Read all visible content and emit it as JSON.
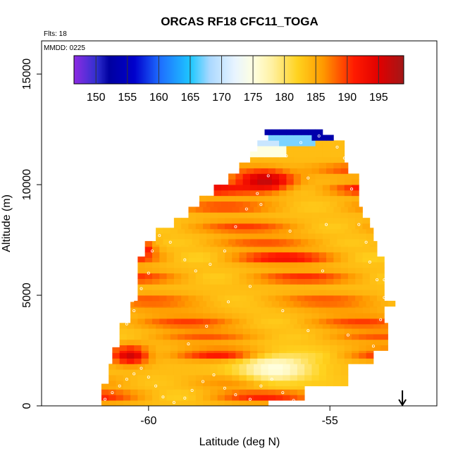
{
  "header": {
    "title": "ORCAS RF18 CFC11_TOGA",
    "flights_label": "Flts: 18",
    "date_label": "MMDD: 0225"
  },
  "chart_data": {
    "type": "heatmap",
    "title": "ORCAS RF18 CFC11_TOGA",
    "xlabel": "Latitude (deg N)",
    "ylabel": "Altitude (m)",
    "xlim": [
      -62.95,
      -52.05
    ],
    "ylim": [
      0,
      16500
    ],
    "x_ticks": [
      -60,
      -55
    ],
    "x_tick_labels": [
      "-60",
      "-55"
    ],
    "y_ticks": [
      0,
      5000,
      10000,
      15000
    ],
    "y_tick_labels": [
      "0",
      "5000",
      "10000",
      "15000"
    ],
    "grid": false,
    "colorbar": {
      "placement": "top, inside plot",
      "min": 146.5,
      "max": 199,
      "ticks": [
        150,
        155,
        160,
        165,
        170,
        175,
        180,
        185,
        190,
        195
      ],
      "tick_labels": [
        "150",
        "155",
        "160",
        "165",
        "170",
        "175",
        "180",
        "185",
        "190",
        "195"
      ],
      "stops": [
        [
          146.5,
          "#8a2be2"
        ],
        [
          150,
          "#3030d0"
        ],
        [
          152,
          "#0000a0"
        ],
        [
          156,
          "#0000cc"
        ],
        [
          160,
          "#1e6cff"
        ],
        [
          165,
          "#1ec8ff"
        ],
        [
          168,
          "#aad8ff"
        ],
        [
          172,
          "#e8f4ff"
        ],
        [
          175,
          "#ffffe0"
        ],
        [
          178,
          "#fff0a0"
        ],
        [
          182,
          "#ffd21e"
        ],
        [
          186,
          "#ff9a00"
        ],
        [
          188,
          "#ff6600"
        ],
        [
          191,
          "#ff1a00"
        ],
        [
          195,
          "#e00000"
        ],
        [
          199,
          "#a01818"
        ]
      ]
    },
    "cell_size": {
      "lat": 0.2,
      "alt": 250
    },
    "field": {
      "base": 183.5,
      "bands": [
        {
          "alt": 450,
          "amp": 8
        },
        {
          "alt": 1100,
          "amp": 4
        },
        {
          "alt": 2350,
          "amp": 9
        },
        {
          "alt": 3150,
          "amp": 5
        },
        {
          "alt": 3800,
          "amp": 6
        },
        {
          "alt": 4400,
          "amp": 2
        },
        {
          "alt": 4800,
          "amp": 5
        },
        {
          "alt": 5800,
          "amp": 7
        },
        {
          "alt": 6700,
          "amp": 9
        },
        {
          "alt": 7400,
          "amp": 5
        },
        {
          "alt": 8100,
          "amp": 6
        },
        {
          "alt": 9000,
          "amp": 6
        },
        {
          "alt": 9800,
          "amp": 10
        },
        {
          "alt": 10700,
          "amp": 6
        }
      ],
      "features": [
        {
          "lat": -56.5,
          "alt": 1700,
          "val": 175,
          "slat": 1.0,
          "salt": 700
        },
        {
          "lat": -60.5,
          "alt": 2300,
          "val": 196,
          "slat": 0.5,
          "salt": 400
        },
        {
          "lat": -60.3,
          "alt": 7100,
          "val": 196,
          "slat": 0.4,
          "salt": 300
        },
        {
          "lat": -56.8,
          "alt": 10200,
          "val": 197,
          "slat": 0.8,
          "salt": 500
        }
      ],
      "top_rows": [
        {
          "alt": 11500,
          "from_lat": -57.2,
          "to_lat": -56.2,
          "val": 175
        },
        {
          "alt": 11750,
          "from_lat": -57.5,
          "to_lat": -56.3,
          "val": 170
        },
        {
          "alt": 12000,
          "from_lat": -57.4,
          "to_lat": -55.4,
          "val": 167
        },
        {
          "alt": 12250,
          "from_lat": -57.3,
          "to_lat": -54.6,
          "val": 153
        },
        {
          "alt": 12400,
          "from_lat": -55.3,
          "to_lat": -54.3,
          "val": 149
        }
      ]
    },
    "coverage": [
      {
        "alt_min": 0,
        "alt_max": 250,
        "lat_min": -61.3,
        "lat_max": -56.7
      },
      {
        "alt_min": 250,
        "alt_max": 900,
        "lat_min": -61.3,
        "lat_max": -55.8
      },
      {
        "alt_min": 900,
        "alt_max": 1900,
        "lat_min": -61.1,
        "lat_max": -54.6
      },
      {
        "alt_min": 1900,
        "alt_max": 2500,
        "lat_min": -61.0,
        "lat_max": -53.8
      },
      {
        "alt_min": 2500,
        "alt_max": 3700,
        "lat_min": -60.8,
        "lat_max": -53.5
      },
      {
        "alt_min": 3700,
        "alt_max": 4500,
        "lat_min": -60.5,
        "lat_max": -53.5
      },
      {
        "alt_min": 4500,
        "alt_max": 4750,
        "lat_min": -60.4,
        "lat_max": -53.2
      },
      {
        "alt_min": 4750,
        "alt_max": 6700,
        "lat_min": -60.3,
        "lat_max": -53.5
      },
      {
        "alt_min": 6700,
        "alt_max": 7300,
        "lat_min": -60.1,
        "lat_max": -53.7
      },
      {
        "alt_min": 7300,
        "alt_max": 8000,
        "lat_min": -59.8,
        "lat_max": -53.9
      },
      {
        "alt_min": 8000,
        "alt_max": 8500,
        "lat_min": -59.3,
        "lat_max": -54.0
      },
      {
        "alt_min": 8500,
        "alt_max": 9000,
        "lat_min": -58.9,
        "lat_max": -54.2
      },
      {
        "alt_min": 9000,
        "alt_max": 9500,
        "lat_min": -58.6,
        "lat_max": -54.2
      },
      {
        "alt_min": 9500,
        "alt_max": 10000,
        "lat_min": -58.2,
        "lat_max": -54.3
      },
      {
        "alt_min": 10000,
        "alt_max": 10500,
        "lat_min": -57.8,
        "lat_max": -54.3
      },
      {
        "alt_min": 10500,
        "alt_max": 11000,
        "lat_min": -57.5,
        "lat_max": -54.5
      },
      {
        "alt_min": 11000,
        "alt_max": 11500,
        "lat_min": -57.2,
        "lat_max": -54.6
      },
      {
        "alt_min": 11500,
        "alt_max": 12000,
        "lat_min": -57.0,
        "lat_max": -54.7
      },
      {
        "alt_min": 12000,
        "alt_max": 12250,
        "lat_min": -56.7,
        "lat_max": -55.0
      },
      {
        "alt_min": 12250,
        "alt_max": 12500,
        "lat_min": -56.8,
        "lat_max": -55.2
      }
    ],
    "sample_points": [
      [
        -61.2,
        300
      ],
      [
        -61.0,
        600
      ],
      [
        -60.8,
        900
      ],
      [
        -60.6,
        1200
      ],
      [
        -60.4,
        1450
      ],
      [
        -60.2,
        1700
      ],
      [
        -60.0,
        1300
      ],
      [
        -59.8,
        900
      ],
      [
        -59.6,
        400
      ],
      [
        -59.3,
        150
      ],
      [
        -59.0,
        350
      ],
      [
        -58.8,
        700
      ],
      [
        -58.5,
        1100
      ],
      [
        -58.2,
        1400
      ],
      [
        -57.9,
        800
      ],
      [
        -57.6,
        500
      ],
      [
        -57.2,
        300
      ],
      [
        -56.9,
        900
      ],
      [
        -56.6,
        1200
      ],
      [
        -56.3,
        600
      ],
      [
        -56.0,
        250
      ],
      [
        -60.9,
        2900
      ],
      [
        -60.6,
        3700
      ],
      [
        -60.4,
        4300
      ],
      [
        -60.2,
        5300
      ],
      [
        -60.0,
        6000
      ],
      [
        -59.9,
        7000
      ],
      [
        -59.7,
        7700
      ],
      [
        -59.4,
        7400
      ],
      [
        -59.0,
        6600
      ],
      [
        -58.7,
        6100
      ],
      [
        -58.3,
        6400
      ],
      [
        -57.9,
        7000
      ],
      [
        -57.6,
        8100
      ],
      [
        -57.3,
        8900
      ],
      [
        -57.0,
        9600
      ],
      [
        -56.7,
        10400
      ],
      [
        -56.2,
        11300
      ],
      [
        -55.8,
        11900
      ],
      [
        -55.3,
        12200
      ],
      [
        -54.8,
        11700
      ],
      [
        -54.6,
        11200
      ],
      [
        -54.4,
        9800
      ],
      [
        -54.2,
        8200
      ],
      [
        -54.0,
        7400
      ],
      [
        -53.9,
        6500
      ],
      [
        -53.7,
        5700
      ],
      [
        -53.5,
        4900
      ],
      [
        -53.6,
        3900
      ],
      [
        -53.8,
        2700
      ],
      [
        -54.5,
        3200
      ],
      [
        -55.6,
        3400
      ],
      [
        -56.3,
        4300
      ],
      [
        -57.2,
        5400
      ],
      [
        -57.8,
        4700
      ],
      [
        -58.4,
        3600
      ],
      [
        -58.9,
        2800
      ],
      [
        -55.2,
        6100
      ],
      [
        -56.1,
        7900
      ],
      [
        -56.9,
        9100
      ],
      [
        -55.1,
        8200
      ],
      [
        -55.6,
        10300
      ],
      [
        -53.5,
        5700
      ]
    ],
    "annotation": {
      "type": "arrow",
      "lat": -53.0,
      "alt_from": 700,
      "alt_to": 0
    }
  }
}
